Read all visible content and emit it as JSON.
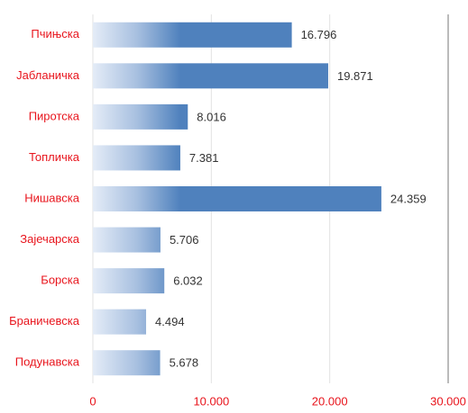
{
  "chart_data": {
    "type": "bar",
    "orientation": "horizontal",
    "categories": [
      "Пчињска",
      "Јабланичка",
      "Пиротска",
      "Топличка",
      "Нишавска",
      "Зајечарска",
      "Борска",
      "Браничевска",
      "Подунавска"
    ],
    "values": [
      16796,
      19871,
      8016,
      7381,
      24359,
      5706,
      6032,
      4494,
      5678
    ],
    "value_labels": [
      "16.796",
      "19.871",
      "8.016",
      "7.381",
      "24.359",
      "5.706",
      "6.032",
      "4.494",
      "5.678"
    ],
    "color": "#4f81bd",
    "xlim": [
      0,
      30000
    ],
    "xticks": [
      0,
      {
        "value": 10000,
        "label": "10.000"
      },
      {
        "value": 20000,
        "label": "20.000"
      },
      {
        "value": 30000,
        "label": "30.000"
      }
    ],
    "grid": true
  }
}
